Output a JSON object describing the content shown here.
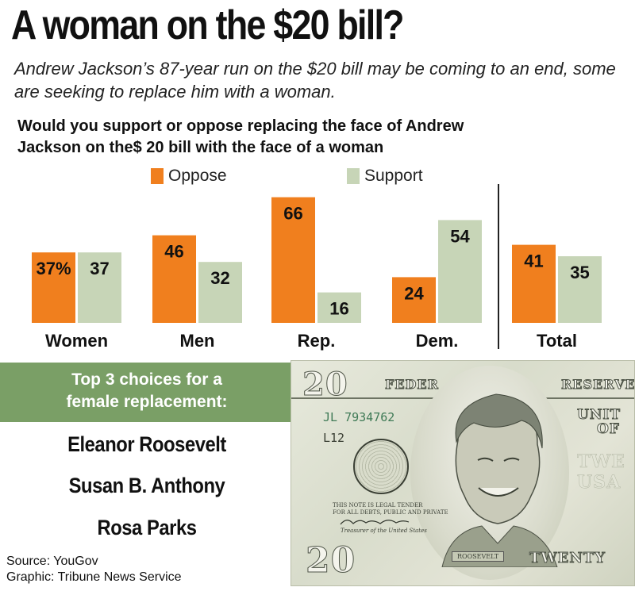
{
  "header": {
    "title": "A woman on the $20 bill?",
    "subtitle": "Andrew Jackson’s 87-year run on the $20 bill may be coming to an end, some are seeking to replace him with a woman.",
    "question_line1": "Would you support or oppose replacing the face of Andrew",
    "question_line2": "Jackson on the$ 20 bill with the face of a woman"
  },
  "legend": {
    "oppose": "Oppose",
    "support": "Support"
  },
  "colors": {
    "oppose": "#f07f1e",
    "support": "#c7d5b7",
    "band": "#7a9f66",
    "divider": "#222222"
  },
  "chart_data": {
    "type": "bar",
    "title": "Would you support or oppose replacing the face of Andrew Jackson on the$ 20 bill with the face of a woman",
    "categories": [
      "Women",
      "Men",
      "Rep.",
      "Dem.",
      "Total"
    ],
    "series": [
      {
        "name": "Oppose",
        "values": [
          37,
          46,
          66,
          24,
          41
        ]
      },
      {
        "name": "Support",
        "values": [
          37,
          32,
          16,
          54,
          35
        ]
      }
    ],
    "value_labels": {
      "Oppose": [
        "37%",
        "46",
        "66",
        "24",
        "41"
      ],
      "Support": [
        "37",
        "32",
        "16",
        "54",
        "35"
      ]
    },
    "ylim": [
      0,
      70
    ],
    "grid": false,
    "legend_position": "top"
  },
  "choices": {
    "heading_line1": "Top 3 choices for a",
    "heading_line2": "female replacement:",
    "items": [
      "Eleanor Roosevelt",
      "Susan B. Anthony",
      "Rosa Parks"
    ]
  },
  "credits": {
    "source": "Source: YouGov",
    "graphic": "Graphic: Tribune News Service"
  },
  "bill": {
    "numeral": "20",
    "serial": "JL 7934762",
    "plate": "L12",
    "top_left": "FEDER",
    "top_right": "RESERVE",
    "side": "UNIT",
    "side2": "OF",
    "legal": "THIS NOTE IS LEGAL TENDER",
    "legal2": "FOR ALL DEBTS, PUBLIC AND PRIVATE",
    "treasurer": "Treasurer of the United States",
    "name_plate": "ROOSEVELT",
    "bottom_word": "TWENTY",
    "watermark": "TWE USA"
  }
}
